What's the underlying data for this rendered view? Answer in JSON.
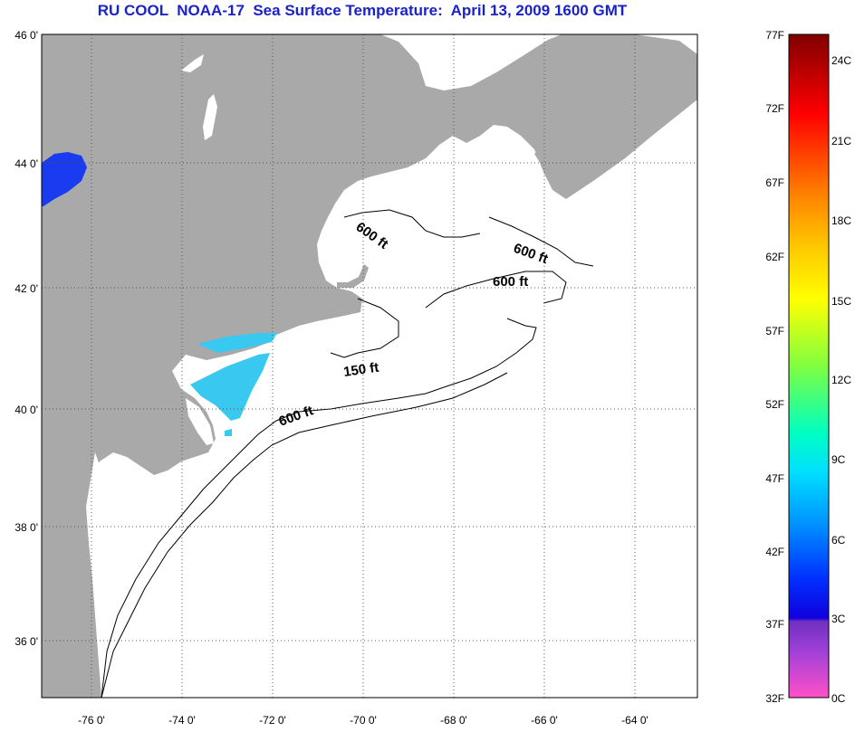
{
  "title": "RU COOL  NOAA-17  Sea Surface Temperature:  April 13, 2009 1600 GMT",
  "colors": {
    "title": "#1a22c8",
    "land": "#a9a9a9",
    "ocean": "#ffffff",
    "cold_water": "#1a3cf0",
    "cool_water": "#38c8f0"
  },
  "map": {
    "lon_ticks": [
      "-76 0'",
      "-74 0'",
      "-72 0'",
      "-70 0'",
      "-68 0'",
      "-66 0'",
      "-64 0'"
    ],
    "lat_ticks": [
      "46 0'",
      "44 0'",
      "42 0'",
      "40 0'",
      "38 0'",
      "36 0'"
    ],
    "isobath_labels": [
      "600 ft",
      "600 ft",
      "600 ft",
      "150 ft",
      "600 ft"
    ],
    "grid": "dotted"
  },
  "colorbar": {
    "fahrenheit": [
      "77F",
      "72F",
      "67F",
      "62F",
      "57F",
      "52F",
      "47F",
      "42F",
      "37F",
      "32F"
    ],
    "celsius": [
      "24C",
      "21C",
      "18C",
      "15C",
      "12C",
      "9C",
      "6C",
      "3C",
      "0C"
    ]
  }
}
